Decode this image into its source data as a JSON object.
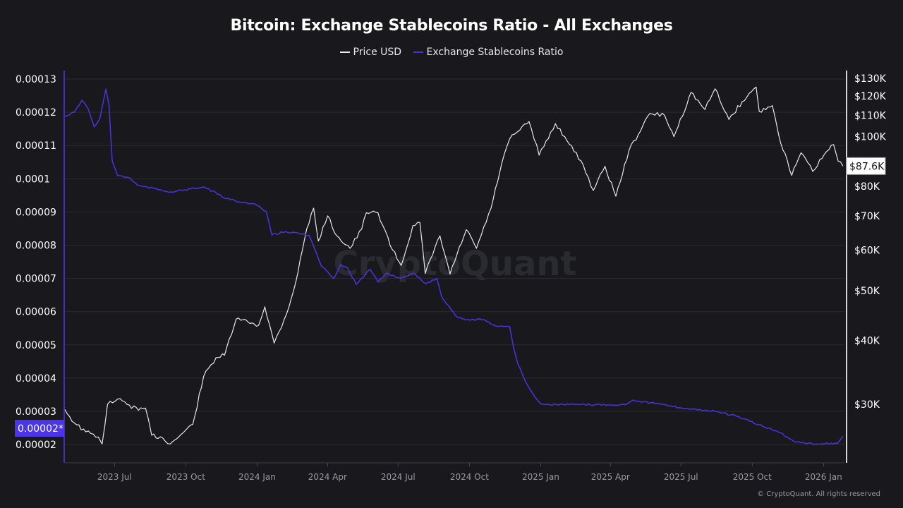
{
  "chart_data": {
    "type": "line",
    "title": "Bitcoin: Exchange Stablecoins Ratio - All Exchanges",
    "x_type": "date",
    "x_range": [
      "2023-04-28",
      "2026-01-28"
    ],
    "x_ticks": [
      {
        "date": "2023-07-01",
        "label": "2023 Jul"
      },
      {
        "date": "2023-10-01",
        "label": "2023 Oct"
      },
      {
        "date": "2024-01-01",
        "label": "2024 Jan"
      },
      {
        "date": "2024-04-01",
        "label": "2024 Apr"
      },
      {
        "date": "2024-07-01",
        "label": "2024 Jul"
      },
      {
        "date": "2024-10-01",
        "label": "2024 Oct"
      },
      {
        "date": "2025-01-01",
        "label": "2025 Jan"
      },
      {
        "date": "2025-04-01",
        "label": "2025 Apr"
      },
      {
        "date": "2025-07-01",
        "label": "2025 Jul"
      },
      {
        "date": "2025-10-01",
        "label": "2025 Oct"
      },
      {
        "date": "2026-01-01",
        "label": "2026 Jan"
      }
    ],
    "left_axis": {
      "scale": "linear",
      "range": [
        1.75e-05,
        0.00013
      ],
      "ticks": [
        0.00013,
        0.00012,
        0.00011,
        0.0001,
        9e-05,
        8e-05,
        7e-05,
        6e-05,
        5e-05,
        4e-05,
        3e-05,
        2e-05
      ],
      "tick_labels": [
        "0.00013",
        "0.00012",
        "0.00011",
        "0.0001",
        "0.00009",
        "0.00008",
        "0.00007",
        "0.00006",
        "0.00005",
        "0.00004",
        "0.00003",
        "0.00002"
      ],
      "current_label": "0.00002*",
      "color": "#3f30c4"
    },
    "right_axis": {
      "scale": "log",
      "range_top": 130000,
      "range_bottom": 30000,
      "ticks": [
        130000,
        120000,
        110000,
        100000,
        80000,
        70000,
        60000,
        50000,
        40000,
        30000
      ],
      "tick_labels": [
        "$130K",
        "$120K",
        "$110K",
        "$100K",
        "$80K",
        "$70K",
        "$60K",
        "$50K",
        "$40K",
        "$30K"
      ],
      "current_value": 87600,
      "current_label": "$87.6K"
    },
    "grid": true,
    "legend_placement": "top-center",
    "series": [
      {
        "name": "Price USD",
        "axis": "right",
        "color": "#e8e8e8",
        "points": [
          [
            "2023-04-28",
            29300
          ],
          [
            "2023-05-10",
            27600
          ],
          [
            "2023-05-25",
            26500
          ],
          [
            "2023-06-10",
            25900
          ],
          [
            "2023-06-15",
            25100
          ],
          [
            "2023-06-22",
            30000
          ],
          [
            "2023-07-05",
            30700
          ],
          [
            "2023-07-20",
            29900
          ],
          [
            "2023-08-01",
            29200
          ],
          [
            "2023-08-10",
            29500
          ],
          [
            "2023-08-18",
            26100
          ],
          [
            "2023-09-01",
            25800
          ],
          [
            "2023-09-11",
            25100
          ],
          [
            "2023-09-25",
            26200
          ],
          [
            "2023-10-10",
            27400
          ],
          [
            "2023-10-24",
            34000
          ],
          [
            "2023-11-09",
            37000
          ],
          [
            "2023-11-20",
            37400
          ],
          [
            "2023-12-05",
            44000
          ],
          [
            "2023-12-20",
            43500
          ],
          [
            "2024-01-03",
            42800
          ],
          [
            "2024-01-11",
            46500
          ],
          [
            "2024-01-23",
            39500
          ],
          [
            "2024-02-08",
            45000
          ],
          [
            "2024-02-20",
            52000
          ],
          [
            "2024-03-05",
            66000
          ],
          [
            "2024-03-14",
            72500
          ],
          [
            "2024-03-20",
            62500
          ],
          [
            "2024-04-01",
            70000
          ],
          [
            "2024-04-13",
            64000
          ],
          [
            "2024-04-30",
            60500
          ],
          [
            "2024-05-15",
            66000
          ],
          [
            "2024-05-21",
            71000
          ],
          [
            "2024-06-05",
            71000
          ],
          [
            "2024-06-24",
            60000
          ],
          [
            "2024-07-05",
            56000
          ],
          [
            "2024-07-20",
            67000
          ],
          [
            "2024-07-29",
            68000
          ],
          [
            "2024-08-05",
            54000
          ],
          [
            "2024-08-24",
            64000
          ],
          [
            "2024-09-06",
            53900
          ],
          [
            "2024-09-27",
            65800
          ],
          [
            "2024-10-10",
            60500
          ],
          [
            "2024-10-29",
            72500
          ],
          [
            "2024-11-12",
            89000
          ],
          [
            "2024-11-22",
            99000
          ],
          [
            "2024-12-05",
            103000
          ],
          [
            "2024-12-17",
            107000
          ],
          [
            "2024-12-30",
            92000
          ],
          [
            "2025-01-20",
            106000
          ],
          [
            "2025-02-01",
            100000
          ],
          [
            "2025-02-25",
            88000
          ],
          [
            "2025-03-10",
            78500
          ],
          [
            "2025-03-25",
            87500
          ],
          [
            "2025-04-08",
            76500
          ],
          [
            "2025-04-25",
            94000
          ],
          [
            "2025-05-22",
            111000
          ],
          [
            "2025-06-10",
            110000
          ],
          [
            "2025-06-22",
            100000
          ],
          [
            "2025-07-14",
            122000
          ],
          [
            "2025-08-01",
            113000
          ],
          [
            "2025-08-14",
            124000
          ],
          [
            "2025-09-01",
            108000
          ],
          [
            "2025-09-18",
            117000
          ],
          [
            "2025-10-06",
            125000
          ],
          [
            "2025-10-10",
            112000
          ],
          [
            "2025-10-27",
            115000
          ],
          [
            "2025-11-04",
            101000
          ],
          [
            "2025-11-21",
            84000
          ],
          [
            "2025-12-03",
            93000
          ],
          [
            "2025-12-18",
            85500
          ],
          [
            "2026-01-05",
            93500
          ],
          [
            "2026-01-14",
            96500
          ],
          [
            "2026-01-20",
            89500
          ],
          [
            "2026-01-26",
            87600
          ]
        ]
      },
      {
        "name": "Exchange Stablecoins Ratio",
        "axis": "left",
        "color": "#4733d6",
        "points": [
          [
            "2023-04-28",
            0.0001187
          ],
          [
            "2023-05-10",
            0.00012
          ],
          [
            "2023-05-20",
            0.0001236
          ],
          [
            "2023-05-28",
            0.000121
          ],
          [
            "2023-06-05",
            0.0001156
          ],
          [
            "2023-06-12",
            0.000118
          ],
          [
            "2023-06-20",
            0.000127
          ],
          [
            "2023-06-24",
            0.000122
          ],
          [
            "2023-06-28",
            0.0001054
          ],
          [
            "2023-07-05",
            0.000101
          ],
          [
            "2023-07-20",
            0.0001003
          ],
          [
            "2023-07-31",
            9.8e-05
          ],
          [
            "2023-09-12",
            9.6e-05
          ],
          [
            "2023-10-25",
            9.75e-05
          ],
          [
            "2023-11-22",
            9.4e-05
          ],
          [
            "2024-01-01",
            9.2e-05
          ],
          [
            "2024-01-13",
            9e-05
          ],
          [
            "2024-01-20",
            8.31e-05
          ],
          [
            "2024-02-07",
            8.41e-05
          ],
          [
            "2024-03-08",
            8.3e-05
          ],
          [
            "2024-03-24",
            7.37e-05
          ],
          [
            "2024-04-09",
            7e-05
          ],
          [
            "2024-04-18",
            7.42e-05
          ],
          [
            "2024-04-27",
            7.31e-05
          ],
          [
            "2024-05-08",
            6.82e-05
          ],
          [
            "2024-05-26",
            7.27e-05
          ],
          [
            "2024-06-05",
            6.89e-05
          ],
          [
            "2024-06-16",
            7.16e-05
          ],
          [
            "2024-07-04",
            7e-05
          ],
          [
            "2024-07-20",
            7.16e-05
          ],
          [
            "2024-08-06",
            6.84e-05
          ],
          [
            "2024-08-20",
            7e-05
          ],
          [
            "2024-08-26",
            6.46e-05
          ],
          [
            "2024-09-04",
            6.18e-05
          ],
          [
            "2024-09-16",
            5.82e-05
          ],
          [
            "2024-09-26",
            5.76e-05
          ],
          [
            "2024-10-20",
            5.76e-05
          ],
          [
            "2024-11-04",
            5.57e-05
          ],
          [
            "2024-11-22",
            5.55e-05
          ],
          [
            "2024-11-27",
            4.91e-05
          ],
          [
            "2024-12-03",
            4.4e-05
          ],
          [
            "2024-12-12",
            3.91e-05
          ],
          [
            "2024-12-25",
            3.42e-05
          ],
          [
            "2025-01-02",
            3.21e-05
          ],
          [
            "2025-02-21",
            3.2e-05
          ],
          [
            "2025-04-20",
            3.2e-05
          ],
          [
            "2025-04-30",
            3.34e-05
          ],
          [
            "2025-05-23",
            3.26e-05
          ],
          [
            "2025-06-29",
            3.11e-05
          ],
          [
            "2025-08-14",
            3e-05
          ],
          [
            "2025-09-11",
            2.85e-05
          ],
          [
            "2025-10-09",
            2.6e-05
          ],
          [
            "2025-11-06",
            2.36e-05
          ],
          [
            "2025-11-24",
            2.09e-05
          ],
          [
            "2025-12-22",
            2.02e-05
          ],
          [
            "2026-01-19",
            2.04e-05
          ],
          [
            "2026-01-26",
            2.25e-05
          ]
        ]
      }
    ]
  },
  "watermark": "CryptoQuant",
  "footer": "© CryptoQuant. All rights reserved"
}
